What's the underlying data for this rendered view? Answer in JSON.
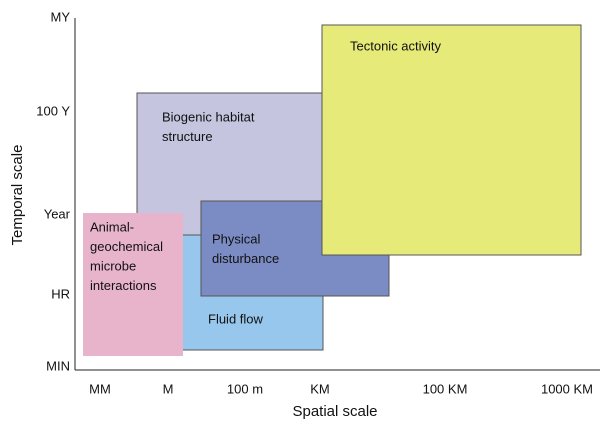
{
  "axes": {
    "y_title": "Temporal scale",
    "x_title": "Spatial scale",
    "y_ticks": [
      "MY",
      "100 Y",
      "Year",
      "HR",
      "MIN"
    ],
    "x_ticks": [
      "MM",
      "M",
      "100 m",
      "KM",
      "100 KM",
      "1000 KM"
    ]
  },
  "boxes": [
    {
      "label": [
        "Biogenic habitat",
        "structure"
      ]
    },
    {
      "label": [
        "Fluid flow"
      ]
    },
    {
      "label": [
        "Physical",
        "disturbance"
      ]
    },
    {
      "label": [
        "Tectonic activity"
      ]
    },
    {
      "label": [
        "Animal-",
        "geochemical",
        "microbe",
        "interactions"
      ]
    }
  ]
}
